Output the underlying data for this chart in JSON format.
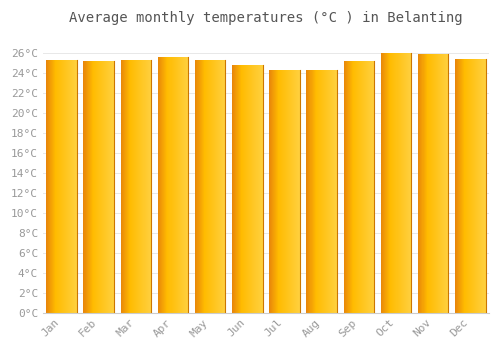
{
  "title": "Average monthly temperatures (°C ) in Belanting",
  "months": [
    "Jan",
    "Feb",
    "Mar",
    "Apr",
    "May",
    "Jun",
    "Jul",
    "Aug",
    "Sep",
    "Oct",
    "Nov",
    "Dec"
  ],
  "values": [
    25.3,
    25.2,
    25.3,
    25.6,
    25.3,
    24.8,
    24.3,
    24.3,
    25.2,
    26.0,
    25.9,
    25.4
  ],
  "ylim": [
    0,
    28
  ],
  "yticks": [
    0,
    2,
    4,
    6,
    8,
    10,
    12,
    14,
    16,
    18,
    20,
    22,
    24,
    26
  ],
  "bar_color_left": "#E8860A",
  "bar_color_mid": "#FFBB00",
  "bar_color_right": "#FFD040",
  "background_color": "#FFFFFF",
  "grid_color": "#E8E8E8",
  "title_fontsize": 10,
  "tick_fontsize": 8,
  "font_family": "monospace"
}
